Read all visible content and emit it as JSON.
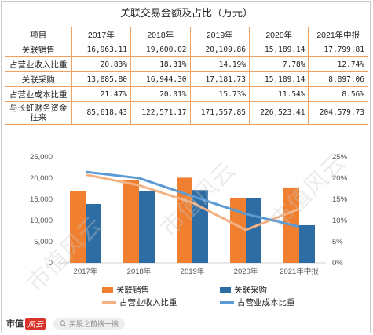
{
  "title": "关联交易金额及占比（万元）",
  "table": {
    "header": [
      "项目",
      "2017年",
      "2018年",
      "2019年",
      "2020年",
      "2021年中报"
    ],
    "rows": [
      {
        "label": "关联销售",
        "values": [
          "16,963.11",
          "19,600.02",
          "20,109.86",
          "15,189.14",
          "17,799.81"
        ]
      },
      {
        "label": "占营业收入比重",
        "values": [
          "20.83%",
          "18.31%",
          "14.19%",
          "7.78%",
          "12.74%"
        ]
      },
      {
        "label": "关联采购",
        "values": [
          "13,885.80",
          "16,944.30",
          "17,181.73",
          "15,189.14",
          "8,897.06"
        ]
      },
      {
        "label": "占营业成本比重",
        "values": [
          "21.47%",
          "20.01%",
          "15.73%",
          "11.54%",
          "8.56%"
        ]
      },
      {
        "label": "与长虹财务资金往来",
        "values": [
          "85,618.43",
          "122,571.17",
          "171,557.85",
          "226,523.41",
          "204,579.73"
        ]
      }
    ]
  },
  "chart_data": {
    "type": "bar",
    "categories": [
      "2017年",
      "2018年",
      "2019年",
      "2020年",
      "2021年中报"
    ],
    "series": [
      {
        "name": "关联销售",
        "kind": "bar",
        "axis": "left",
        "color": "#f08030",
        "values": [
          16963.11,
          19600.02,
          20109.86,
          15189.14,
          17799.81
        ]
      },
      {
        "name": "关联采购",
        "kind": "bar",
        "axis": "left",
        "color": "#2e6da4",
        "values": [
          13885.8,
          16944.3,
          17181.73,
          15189.14,
          8897.06
        ]
      },
      {
        "name": "占营业收入比重",
        "kind": "line",
        "axis": "right",
        "color": "#f4b183",
        "values": [
          20.83,
          18.31,
          14.19,
          7.78,
          12.74
        ]
      },
      {
        "name": "占营业成本比重",
        "kind": "line",
        "axis": "right",
        "color": "#5b9bd5",
        "values": [
          21.47,
          20.01,
          15.73,
          11.54,
          8.56
        ]
      }
    ],
    "left_axis": {
      "ylim": [
        0,
        25000
      ],
      "ticks": [
        "0",
        "5,000",
        "10,000",
        "15,000",
        "20,000",
        "25,000"
      ]
    },
    "right_axis": {
      "ylim": [
        0,
        25
      ],
      "ticks": [
        "0%",
        "5%",
        "10%",
        "15%",
        "20%",
        "25%"
      ]
    },
    "legend_position": "bottom",
    "grid": false
  },
  "footer": {
    "brand_a": "市值",
    "brand_b": "风云",
    "search_placeholder": "买股之前搜一搜"
  },
  "watermark": "市值风云",
  "icons": {
    "search": "search-icon"
  }
}
